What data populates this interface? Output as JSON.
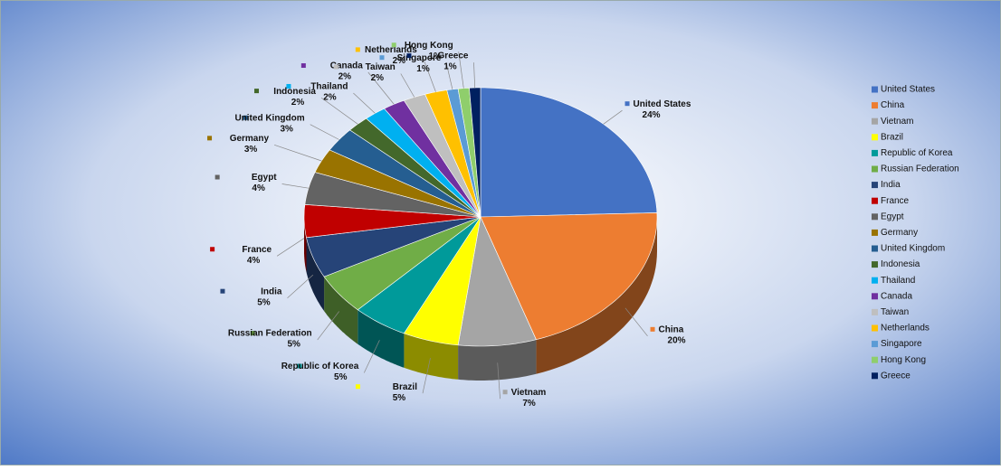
{
  "chart_data": {
    "type": "pie",
    "categories": [
      "United States",
      "China",
      "Vietnam",
      "Brazil",
      "Republic of Korea",
      "Russian Federation",
      "India",
      "France",
      "Egypt",
      "Germany",
      "United Kingdom",
      "Indonesia",
      "Thailand",
      "Canada",
      "Taiwan",
      "Netherlands",
      "Singapore",
      "Hong Kong",
      "Greece"
    ],
    "values": [
      24,
      20,
      7,
      5,
      5,
      5,
      5,
      4,
      4,
      3,
      3,
      2,
      2,
      2,
      2,
      2,
      1,
      1,
      1
    ],
    "value_labels": [
      "24%",
      "20%",
      "7%",
      "5%",
      "5%",
      "5%",
      "5%",
      "4%",
      "4%",
      "3%",
      "3%",
      "2%",
      "2%",
      "2%",
      "2%",
      "2%",
      "1%",
      "1%",
      "1%"
    ],
    "colors": [
      "#4472c4",
      "#ed7d31",
      "#a5a5a5",
      "#ffff00",
      "#009a9a",
      "#70ad47",
      "#264478",
      "#c00000",
      "#636363",
      "#997300",
      "#255e91",
      "#43682b",
      "#00b0f0",
      "#7030a0",
      "#bfbfbf",
      "#ffc000",
      "#5b9bd5",
      "#8fce6c",
      "#002060"
    ],
    "legend": "right"
  }
}
